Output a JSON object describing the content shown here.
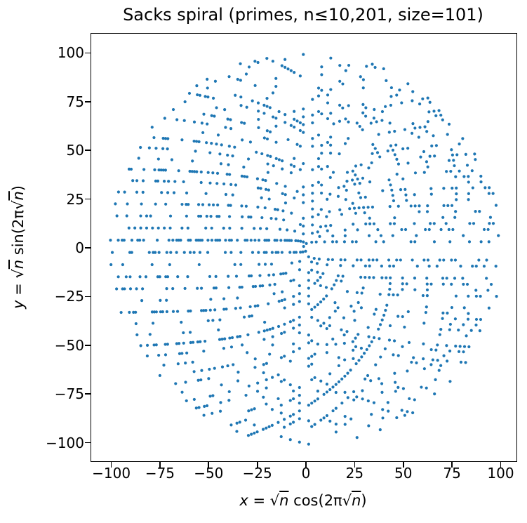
{
  "chart_data": {
    "type": "scatter",
    "title": "Sacks spiral (primes, n≤10,201, size=101)",
    "xlabel": "x = √n cos(2π√n)",
    "ylabel": "y = √n sin(2π√n)",
    "xlabel_parts": [
      {
        "t": "x",
        "i": true
      },
      {
        "t": " = "
      },
      {
        "t": "√"
      },
      {
        "t": "n",
        "i": true,
        "ol": true
      },
      {
        "t": " cos(2π"
      },
      {
        "t": "√"
      },
      {
        "t": "n",
        "i": true,
        "ol": true
      },
      {
        "t": ")"
      }
    ],
    "ylabel_parts": [
      {
        "t": "y",
        "i": true
      },
      {
        "t": " = "
      },
      {
        "t": "√"
      },
      {
        "t": "n",
        "i": true,
        "ol": true
      },
      {
        "t": " sin(2π"
      },
      {
        "t": "√"
      },
      {
        "t": "n",
        "i": true,
        "ol": true
      },
      {
        "t": ")"
      }
    ],
    "x_tick_values": [
      -100,
      -75,
      -50,
      -25,
      0,
      25,
      50,
      75,
      100
    ],
    "x_tick_labels": [
      "−100",
      "−75",
      "−50",
      "−25",
      "0",
      "25",
      "50",
      "75",
      "100"
    ],
    "y_tick_values": [
      -100,
      -75,
      -50,
      -25,
      0,
      25,
      50,
      75,
      100
    ],
    "y_tick_labels": [
      "−100",
      "−75",
      "−50",
      "−25",
      "0",
      "25",
      "50",
      "75",
      "100"
    ],
    "xlim": [
      -110.3,
      108.1
    ],
    "ylim": [
      -109.5,
      109.9
    ],
    "grid": false,
    "legend": null,
    "background_color": "#ffffff",
    "spine_color": "#000000",
    "text_color": "#000000",
    "marker_color": "#1f77b4",
    "marker_radius_px": 2.1,
    "n_points": 1252,
    "points_rule": {
      "description": "One dot per prime n with n ≤ n_max, plotted on the Sacks spiral",
      "n_max": 10201,
      "condition": "n is prime",
      "x_formula": "sqrt(n)*cos(2*pi*sqrt(n))",
      "y_formula": "sqrt(n)*sin(2*pi*sqrt(n))"
    }
  }
}
